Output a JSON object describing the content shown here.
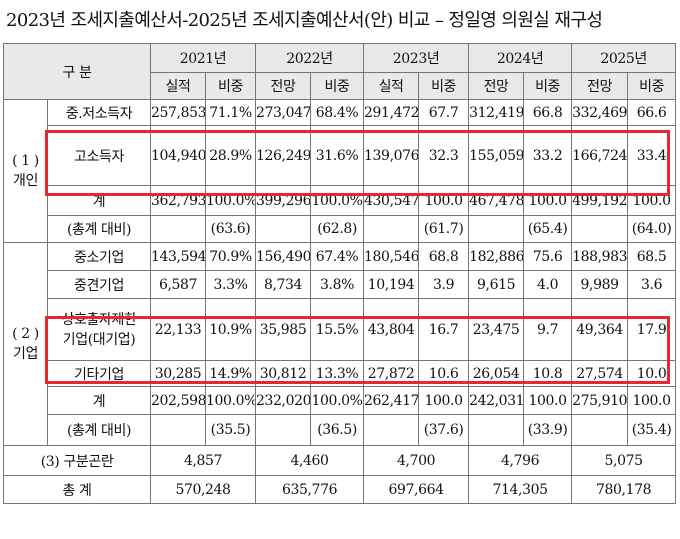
{
  "title": "2023년 조세지출예산서-2025년 조세지출예산서(안) 비교 – 정일영 의원실 재구성",
  "header": {
    "label": "구  분",
    "years": [
      "2021년",
      "2022년",
      "2023년",
      "2024년",
      "2025년"
    ],
    "subs": [
      "실적",
      "비중",
      "전망",
      "비중",
      "실적",
      "비중",
      "전망",
      "비중",
      "전망",
      "비중"
    ]
  },
  "personal": {
    "group_label": [
      "( 1 )",
      "개인"
    ],
    "rows": [
      {
        "name": "중.저소득자",
        "vals": [
          "257,853",
          "71.1%",
          "273,047",
          "68.4%",
          "291,472",
          "67.7",
          "312,419",
          "66.8",
          "332,469",
          "66.6"
        ]
      },
      {
        "name": "고소득자",
        "vals": [
          "104,940",
          "28.9%",
          "126,249",
          "31.6%",
          "139,076",
          "32.3",
          "155,059",
          "33.2",
          "166,724",
          "33.4"
        ]
      }
    ],
    "total": {
      "name": "계",
      "vals": [
        "362,793",
        "100.0%",
        "399,296",
        "100.0%",
        "430,547",
        "100.0",
        "467,478",
        "100.0",
        "499,192",
        "100.0"
      ]
    },
    "ratio": {
      "name": "(총계 대비)",
      "vals": [
        "(63.6)",
        "(62.8)",
        "(61.7)",
        "(65.4)",
        "(64.0)"
      ]
    }
  },
  "corporate": {
    "group_label": [
      "( 2 )",
      "기업"
    ],
    "rows": [
      {
        "name": [
          "중소기업"
        ],
        "vals": [
          "143,594",
          "70.9%",
          "156,490",
          "67.4%",
          "180,546",
          "68.8",
          "182,886",
          "75.6",
          "188,983",
          "68.5"
        ]
      },
      {
        "name": [
          "중견기업"
        ],
        "vals": [
          "6,587",
          "3.3%",
          "8,734",
          "3.8%",
          "10,194",
          "3.9",
          "9,615",
          "4.0",
          "9,989",
          "3.6"
        ]
      },
      {
        "name": [
          "상호출자제한",
          "기업(대기업)"
        ],
        "vals": [
          "22,133",
          "10.9%",
          "35,985",
          "15.5%",
          "43,804",
          "16.7",
          "23,475",
          "9.7",
          "49,364",
          "17.9"
        ]
      },
      {
        "name": [
          "기타기업"
        ],
        "vals": [
          "30,285",
          "14.9%",
          "30,812",
          "13.3%",
          "27,872",
          "10.6",
          "26,054",
          "10.8",
          "27,574",
          "10.0"
        ]
      }
    ],
    "total": {
      "name": "계",
      "vals": [
        "202,598",
        "100.0%",
        "232,020",
        "100.0%",
        "262,417",
        "100.0",
        "242,031",
        "100.0",
        "275,910",
        "100.0"
      ]
    },
    "ratio": {
      "name": "(총계 대비)",
      "vals": [
        "(35.5)",
        "(36.5)",
        "(37.6)",
        "(33.9)",
        "(35.4)"
      ]
    }
  },
  "unclassified": {
    "name": "(3) 구분곤란",
    "vals": [
      "4,857",
      "4,460",
      "4,700",
      "4,796",
      "5,075"
    ]
  },
  "grand_total": {
    "name": "총  계",
    "vals": [
      "570,248",
      "635,776",
      "697,664",
      "714,305",
      "780,178"
    ]
  },
  "highlight_color": "#e8262e"
}
